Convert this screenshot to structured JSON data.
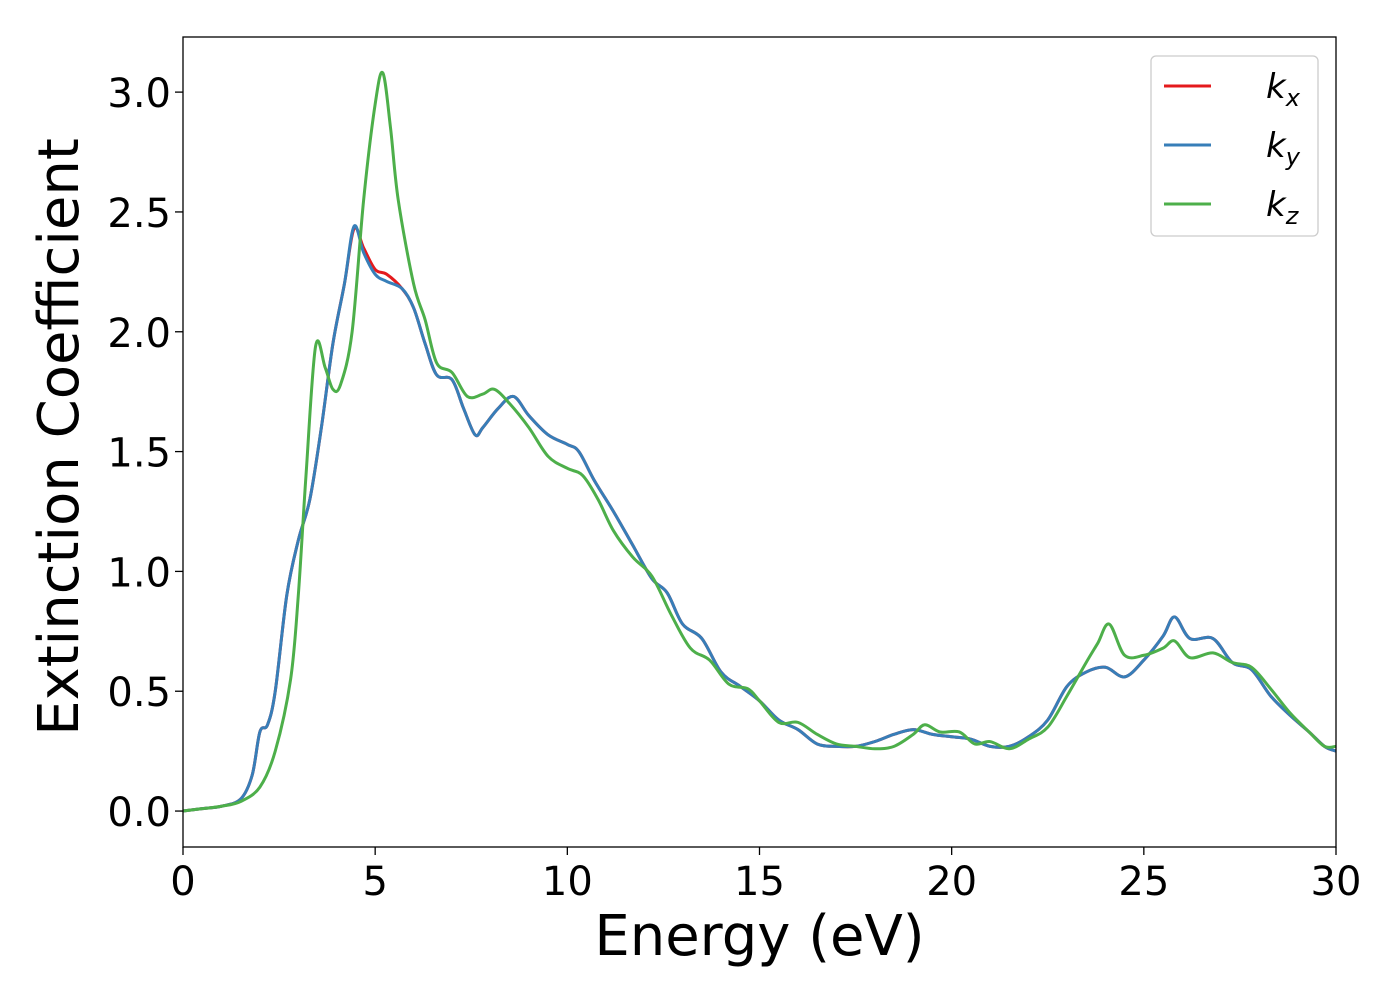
{
  "chart_data": {
    "type": "line",
    "title": "",
    "xlabel": "Energy (eV)",
    "ylabel": "Extinction Coefficient",
    "xlim": [
      0,
      30
    ],
    "ylim": [
      -0.15,
      3.23
    ],
    "xticks": [
      0,
      5,
      10,
      15,
      20,
      25,
      30
    ],
    "xtick_labels": [
      "0",
      "5",
      "10",
      "15",
      "20",
      "25",
      "30"
    ],
    "yticks": [
      0.0,
      0.5,
      1.0,
      1.5,
      2.0,
      2.5,
      3.0
    ],
    "ytick_labels": [
      "0.0",
      "0.5",
      "1.0",
      "1.5",
      "2.0",
      "2.5",
      "3.0"
    ],
    "grid": false,
    "legend_position": "top-right",
    "series": [
      {
        "name": "k",
        "subscript": "x",
        "color": "#e41a1c",
        "points": [
          [
            0,
            0
          ],
          [
            0.5,
            0.01
          ],
          [
            1.0,
            0.02
          ],
          [
            1.5,
            0.05
          ],
          [
            1.8,
            0.15
          ],
          [
            2.0,
            0.33
          ],
          [
            2.2,
            0.36
          ],
          [
            2.4,
            0.5
          ],
          [
            2.7,
            0.9
          ],
          [
            3.0,
            1.13
          ],
          [
            3.3,
            1.3
          ],
          [
            3.6,
            1.6
          ],
          [
            3.9,
            1.95
          ],
          [
            4.2,
            2.2
          ],
          [
            4.45,
            2.43
          ],
          [
            4.7,
            2.35
          ],
          [
            5.0,
            2.26
          ],
          [
            5.3,
            2.24
          ],
          [
            5.7,
            2.18
          ],
          [
            6.0,
            2.1
          ],
          [
            6.3,
            1.95
          ],
          [
            6.6,
            1.82
          ],
          [
            7.0,
            1.8
          ],
          [
            7.3,
            1.68
          ],
          [
            7.6,
            1.57
          ],
          [
            7.8,
            1.6
          ],
          [
            8.2,
            1.68
          ],
          [
            8.6,
            1.73
          ],
          [
            9.0,
            1.65
          ],
          [
            9.5,
            1.57
          ],
          [
            10.0,
            1.53
          ],
          [
            10.3,
            1.5
          ],
          [
            10.7,
            1.38
          ],
          [
            11.2,
            1.25
          ],
          [
            11.7,
            1.11
          ],
          [
            12.2,
            0.97
          ],
          [
            12.6,
            0.91
          ],
          [
            13.0,
            0.78
          ],
          [
            13.5,
            0.72
          ],
          [
            14.0,
            0.58
          ],
          [
            14.5,
            0.52
          ],
          [
            15.0,
            0.46
          ],
          [
            15.5,
            0.38
          ],
          [
            16.0,
            0.34
          ],
          [
            16.5,
            0.28
          ],
          [
            17.0,
            0.27
          ],
          [
            17.5,
            0.27
          ],
          [
            18.0,
            0.29
          ],
          [
            18.5,
            0.32
          ],
          [
            19.0,
            0.34
          ],
          [
            19.5,
            0.32
          ],
          [
            20.0,
            0.31
          ],
          [
            20.5,
            0.3
          ],
          [
            21.0,
            0.27
          ],
          [
            21.5,
            0.27
          ],
          [
            22.0,
            0.31
          ],
          [
            22.5,
            0.38
          ],
          [
            23.0,
            0.52
          ],
          [
            23.5,
            0.58
          ],
          [
            24.0,
            0.6
          ],
          [
            24.5,
            0.56
          ],
          [
            25.0,
            0.63
          ],
          [
            25.5,
            0.73
          ],
          [
            25.8,
            0.81
          ],
          [
            26.2,
            0.72
          ],
          [
            26.8,
            0.72
          ],
          [
            27.3,
            0.62
          ],
          [
            27.8,
            0.59
          ],
          [
            28.3,
            0.48
          ],
          [
            28.8,
            0.4
          ],
          [
            29.3,
            0.33
          ],
          [
            29.7,
            0.27
          ],
          [
            30.0,
            0.25
          ]
        ]
      },
      {
        "name": "k",
        "subscript": "y",
        "color": "#377eb8",
        "points": [
          [
            0,
            0
          ],
          [
            0.5,
            0.01
          ],
          [
            1.0,
            0.02
          ],
          [
            1.5,
            0.05
          ],
          [
            1.8,
            0.15
          ],
          [
            2.0,
            0.33
          ],
          [
            2.2,
            0.36
          ],
          [
            2.4,
            0.5
          ],
          [
            2.7,
            0.9
          ],
          [
            3.0,
            1.13
          ],
          [
            3.3,
            1.3
          ],
          [
            3.6,
            1.6
          ],
          [
            3.9,
            1.95
          ],
          [
            4.2,
            2.2
          ],
          [
            4.45,
            2.44
          ],
          [
            4.7,
            2.33
          ],
          [
            5.0,
            2.24
          ],
          [
            5.3,
            2.21
          ],
          [
            5.7,
            2.18
          ],
          [
            6.0,
            2.1
          ],
          [
            6.3,
            1.95
          ],
          [
            6.6,
            1.82
          ],
          [
            7.0,
            1.8
          ],
          [
            7.3,
            1.68
          ],
          [
            7.6,
            1.57
          ],
          [
            7.8,
            1.6
          ],
          [
            8.2,
            1.68
          ],
          [
            8.6,
            1.73
          ],
          [
            9.0,
            1.65
          ],
          [
            9.5,
            1.57
          ],
          [
            10.0,
            1.53
          ],
          [
            10.3,
            1.5
          ],
          [
            10.7,
            1.38
          ],
          [
            11.2,
            1.25
          ],
          [
            11.7,
            1.11
          ],
          [
            12.2,
            0.97
          ],
          [
            12.6,
            0.91
          ],
          [
            13.0,
            0.78
          ],
          [
            13.5,
            0.72
          ],
          [
            14.0,
            0.58
          ],
          [
            14.5,
            0.52
          ],
          [
            15.0,
            0.46
          ],
          [
            15.5,
            0.38
          ],
          [
            16.0,
            0.34
          ],
          [
            16.5,
            0.28
          ],
          [
            17.0,
            0.27
          ],
          [
            17.5,
            0.27
          ],
          [
            18.0,
            0.29
          ],
          [
            18.5,
            0.32
          ],
          [
            19.0,
            0.34
          ],
          [
            19.5,
            0.32
          ],
          [
            20.0,
            0.31
          ],
          [
            20.5,
            0.3
          ],
          [
            21.0,
            0.27
          ],
          [
            21.5,
            0.27
          ],
          [
            22.0,
            0.31
          ],
          [
            22.5,
            0.38
          ],
          [
            23.0,
            0.52
          ],
          [
            23.5,
            0.58
          ],
          [
            24.0,
            0.6
          ],
          [
            24.5,
            0.56
          ],
          [
            25.0,
            0.63
          ],
          [
            25.5,
            0.73
          ],
          [
            25.8,
            0.81
          ],
          [
            26.2,
            0.72
          ],
          [
            26.8,
            0.72
          ],
          [
            27.3,
            0.62
          ],
          [
            27.8,
            0.59
          ],
          [
            28.3,
            0.48
          ],
          [
            28.8,
            0.4
          ],
          [
            29.3,
            0.33
          ],
          [
            29.7,
            0.27
          ],
          [
            30.0,
            0.25
          ]
        ]
      },
      {
        "name": "k",
        "subscript": "z",
        "color": "#4daf4a",
        "points": [
          [
            0,
            0
          ],
          [
            0.5,
            0.01
          ],
          [
            1.0,
            0.02
          ],
          [
            1.5,
            0.04
          ],
          [
            2.0,
            0.1
          ],
          [
            2.4,
            0.25
          ],
          [
            2.8,
            0.55
          ],
          [
            3.0,
            0.9
          ],
          [
            3.2,
            1.4
          ],
          [
            3.45,
            1.94
          ],
          [
            3.7,
            1.85
          ],
          [
            3.9,
            1.76
          ],
          [
            4.1,
            1.78
          ],
          [
            4.4,
            2.0
          ],
          [
            4.7,
            2.55
          ],
          [
            5.0,
            2.95
          ],
          [
            5.2,
            3.08
          ],
          [
            5.4,
            2.85
          ],
          [
            5.6,
            2.55
          ],
          [
            6.0,
            2.2
          ],
          [
            6.3,
            2.05
          ],
          [
            6.6,
            1.87
          ],
          [
            7.0,
            1.83
          ],
          [
            7.4,
            1.73
          ],
          [
            7.8,
            1.74
          ],
          [
            8.1,
            1.76
          ],
          [
            8.5,
            1.7
          ],
          [
            9.0,
            1.6
          ],
          [
            9.5,
            1.48
          ],
          [
            10.0,
            1.43
          ],
          [
            10.4,
            1.4
          ],
          [
            10.8,
            1.3
          ],
          [
            11.2,
            1.17
          ],
          [
            11.7,
            1.06
          ],
          [
            12.2,
            0.98
          ],
          [
            12.7,
            0.82
          ],
          [
            13.2,
            0.68
          ],
          [
            13.7,
            0.63
          ],
          [
            14.2,
            0.53
          ],
          [
            14.7,
            0.51
          ],
          [
            15.0,
            0.46
          ],
          [
            15.5,
            0.37
          ],
          [
            16.0,
            0.37
          ],
          [
            16.5,
            0.32
          ],
          [
            17.0,
            0.28
          ],
          [
            17.5,
            0.27
          ],
          [
            18.0,
            0.26
          ],
          [
            18.5,
            0.27
          ],
          [
            19.0,
            0.32
          ],
          [
            19.3,
            0.36
          ],
          [
            19.7,
            0.33
          ],
          [
            20.2,
            0.33
          ],
          [
            20.6,
            0.28
          ],
          [
            21.0,
            0.29
          ],
          [
            21.5,
            0.26
          ],
          [
            22.0,
            0.3
          ],
          [
            22.5,
            0.35
          ],
          [
            23.0,
            0.48
          ],
          [
            23.5,
            0.62
          ],
          [
            23.8,
            0.7
          ],
          [
            24.1,
            0.78
          ],
          [
            24.5,
            0.65
          ],
          [
            25.0,
            0.65
          ],
          [
            25.5,
            0.68
          ],
          [
            25.8,
            0.71
          ],
          [
            26.2,
            0.64
          ],
          [
            26.8,
            0.66
          ],
          [
            27.3,
            0.62
          ],
          [
            27.8,
            0.6
          ],
          [
            28.3,
            0.51
          ],
          [
            28.8,
            0.41
          ],
          [
            29.3,
            0.33
          ],
          [
            29.7,
            0.27
          ],
          [
            30.0,
            0.27
          ]
        ]
      }
    ]
  }
}
